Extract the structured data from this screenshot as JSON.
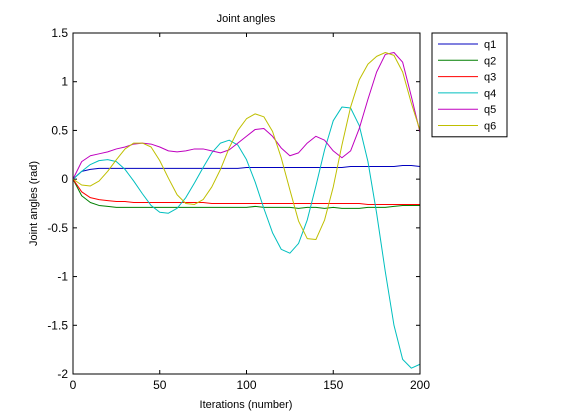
{
  "chart_data": {
    "type": "line",
    "title": "Joint angles",
    "xlabel": "Iterations (number)",
    "ylabel": "Joint angles (rad)",
    "xlim": [
      0,
      200
    ],
    "ylim": [
      -2,
      1.5
    ],
    "xticks": [
      0,
      50,
      100,
      150,
      200
    ],
    "yticks": [
      -2,
      -1.5,
      -1,
      -0.5,
      0,
      0.5,
      1,
      1.5
    ],
    "xtick_labels": [
      "0",
      "50",
      "100",
      "150",
      "200"
    ],
    "ytick_labels": [
      "-2",
      "-1.5",
      "-1",
      "-0.5",
      "0",
      "0.5",
      "1",
      "1.5"
    ],
    "grid": false,
    "legend_position": "outside-top-right",
    "x": [
      0,
      5,
      10,
      15,
      20,
      25,
      30,
      35,
      40,
      45,
      50,
      55,
      60,
      65,
      70,
      75,
      80,
      85,
      90,
      95,
      100,
      105,
      110,
      115,
      120,
      125,
      130,
      135,
      140,
      145,
      150,
      155,
      160,
      165,
      170,
      175,
      180,
      185,
      190,
      195,
      200
    ],
    "series": [
      {
        "name": "q1",
        "color": "#0000bf",
        "values": [
          0,
          0.08,
          0.1,
          0.11,
          0.11,
          0.11,
          0.11,
          0.11,
          0.11,
          0.11,
          0.11,
          0.11,
          0.11,
          0.11,
          0.11,
          0.11,
          0.11,
          0.11,
          0.11,
          0.11,
          0.12,
          0.12,
          0.12,
          0.12,
          0.12,
          0.12,
          0.12,
          0.12,
          0.12,
          0.12,
          0.12,
          0.12,
          0.13,
          0.13,
          0.13,
          0.13,
          0.13,
          0.13,
          0.14,
          0.14,
          0.13
        ]
      },
      {
        "name": "q2",
        "color": "#007f00",
        "values": [
          0,
          -0.17,
          -0.24,
          -0.27,
          -0.28,
          -0.29,
          -0.29,
          -0.29,
          -0.29,
          -0.29,
          -0.29,
          -0.29,
          -0.29,
          -0.29,
          -0.29,
          -0.29,
          -0.29,
          -0.29,
          -0.29,
          -0.29,
          -0.29,
          -0.28,
          -0.29,
          -0.29,
          -0.29,
          -0.29,
          -0.3,
          -0.29,
          -0.29,
          -0.3,
          -0.29,
          -0.3,
          -0.3,
          -0.3,
          -0.29,
          -0.29,
          -0.29,
          -0.28,
          -0.27,
          -0.27,
          -0.27
        ]
      },
      {
        "name": "q3",
        "color": "#ff0000",
        "values": [
          0,
          -0.13,
          -0.19,
          -0.21,
          -0.22,
          -0.23,
          -0.23,
          -0.24,
          -0.24,
          -0.24,
          -0.24,
          -0.24,
          -0.24,
          -0.24,
          -0.24,
          -0.24,
          -0.25,
          -0.25,
          -0.25,
          -0.25,
          -0.25,
          -0.25,
          -0.25,
          -0.25,
          -0.25,
          -0.25,
          -0.25,
          -0.25,
          -0.25,
          -0.25,
          -0.25,
          -0.25,
          -0.25,
          -0.25,
          -0.26,
          -0.26,
          -0.26,
          -0.26,
          -0.26,
          -0.26,
          -0.26
        ]
      },
      {
        "name": "q4",
        "color": "#00bfbf",
        "values": [
          0,
          0.08,
          0.15,
          0.19,
          0.2,
          0.18,
          0.1,
          -0.02,
          -0.15,
          -0.27,
          -0.34,
          -0.35,
          -0.3,
          -0.19,
          -0.04,
          0.12,
          0.27,
          0.37,
          0.4,
          0.35,
          0.2,
          -0.03,
          -0.3,
          -0.55,
          -0.72,
          -0.76,
          -0.66,
          -0.42,
          -0.07,
          0.3,
          0.6,
          0.74,
          0.73,
          0.55,
          0.18,
          -0.35,
          -0.95,
          -1.5,
          -1.85,
          -1.94,
          -1.9
        ]
      },
      {
        "name": "q5",
        "color": "#bf00bf",
        "values": [
          0,
          0.18,
          0.24,
          0.26,
          0.28,
          0.31,
          0.33,
          0.36,
          0.37,
          0.36,
          0.33,
          0.29,
          0.28,
          0.29,
          0.31,
          0.31,
          0.29,
          0.27,
          0.3,
          0.37,
          0.44,
          0.51,
          0.52,
          0.44,
          0.32,
          0.24,
          0.27,
          0.37,
          0.44,
          0.4,
          0.29,
          0.22,
          0.29,
          0.52,
          0.82,
          1.1,
          1.28,
          1.3,
          1.2,
          0.85,
          0.48
        ]
      },
      {
        "name": "q6",
        "color": "#bfbf00",
        "values": [
          0,
          -0.06,
          -0.07,
          -0.02,
          0.08,
          0.2,
          0.31,
          0.37,
          0.37,
          0.33,
          0.19,
          0.01,
          -0.16,
          -0.25,
          -0.26,
          -0.21,
          -0.08,
          0.1,
          0.32,
          0.5,
          0.62,
          0.67,
          0.64,
          0.49,
          0.22,
          -0.11,
          -0.43,
          -0.61,
          -0.62,
          -0.42,
          -0.08,
          0.35,
          0.74,
          1.02,
          1.18,
          1.26,
          1.3,
          1.27,
          1.1,
          0.78,
          0.5
        ]
      }
    ]
  }
}
